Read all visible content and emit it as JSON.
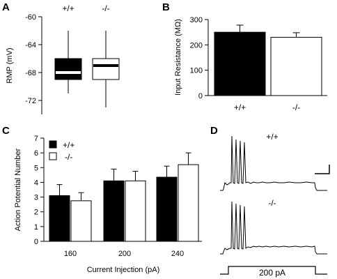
{
  "panels": {
    "A": "A",
    "B": "B",
    "C": "C",
    "D": "D"
  },
  "chart_data": [
    {
      "panel": "A",
      "type": "box",
      "ylabel": "RMP (mV)",
      "ylim": [
        -74,
        -60
      ],
      "yticks": [
        "-60",
        "-64",
        "-68",
        "-72"
      ],
      "ytick_values": [
        -60,
        -64,
        -68,
        -72
      ],
      "categories": [
        "+/+",
        "-/-"
      ],
      "boxes": [
        {
          "name": "+/+",
          "min": -71,
          "q1": -69,
          "median": -68,
          "q3": -66,
          "max": -62,
          "fill": "#000000",
          "median_color": "#ffffff"
        },
        {
          "name": "-/-",
          "min": -73,
          "q1": -69,
          "median": -67,
          "q3": -66,
          "max": -62,
          "fill": "#ffffff",
          "median_color": "#000000"
        }
      ]
    },
    {
      "panel": "B",
      "type": "bar",
      "ylabel": "Input Resistance (MΩ)",
      "ylim": [
        0,
        300
      ],
      "yticks": [
        "0",
        "100",
        "200",
        "300"
      ],
      "ytick_values": [
        0,
        100,
        200,
        300
      ],
      "categories": [
        "+/+",
        "-/-"
      ],
      "values": [
        250,
        230
      ],
      "errors": [
        28,
        18
      ],
      "colors": [
        "#000000",
        "#ffffff"
      ]
    },
    {
      "panel": "C",
      "type": "bar",
      "xlabel": "Current Injection (pA)",
      "ylabel": "Action Potential Number",
      "ylim": [
        0,
        7
      ],
      "yticks": [
        "0",
        "1",
        "2",
        "3",
        "4",
        "5",
        "6",
        "7"
      ],
      "ytick_values": [
        0,
        1,
        2,
        3,
        4,
        5,
        6,
        7
      ],
      "categories": [
        "160",
        "200",
        "240"
      ],
      "series": [
        {
          "name": "+/+",
          "values": [
            3.1,
            4.1,
            4.35
          ],
          "errors": [
            0.75,
            0.8,
            0.75
          ],
          "color": "#000000"
        },
        {
          "name": "-/-",
          "values": [
            2.75,
            4.1,
            5.2
          ],
          "errors": [
            0.55,
            0.65,
            0.8
          ],
          "color": "#ffffff"
        }
      ],
      "legend": "top-left"
    },
    {
      "panel": "D",
      "type": "trace",
      "labels": [
        "+/+",
        "-/-"
      ],
      "stimulus_label": "200 pA",
      "spikes": [
        4,
        4
      ]
    }
  ]
}
